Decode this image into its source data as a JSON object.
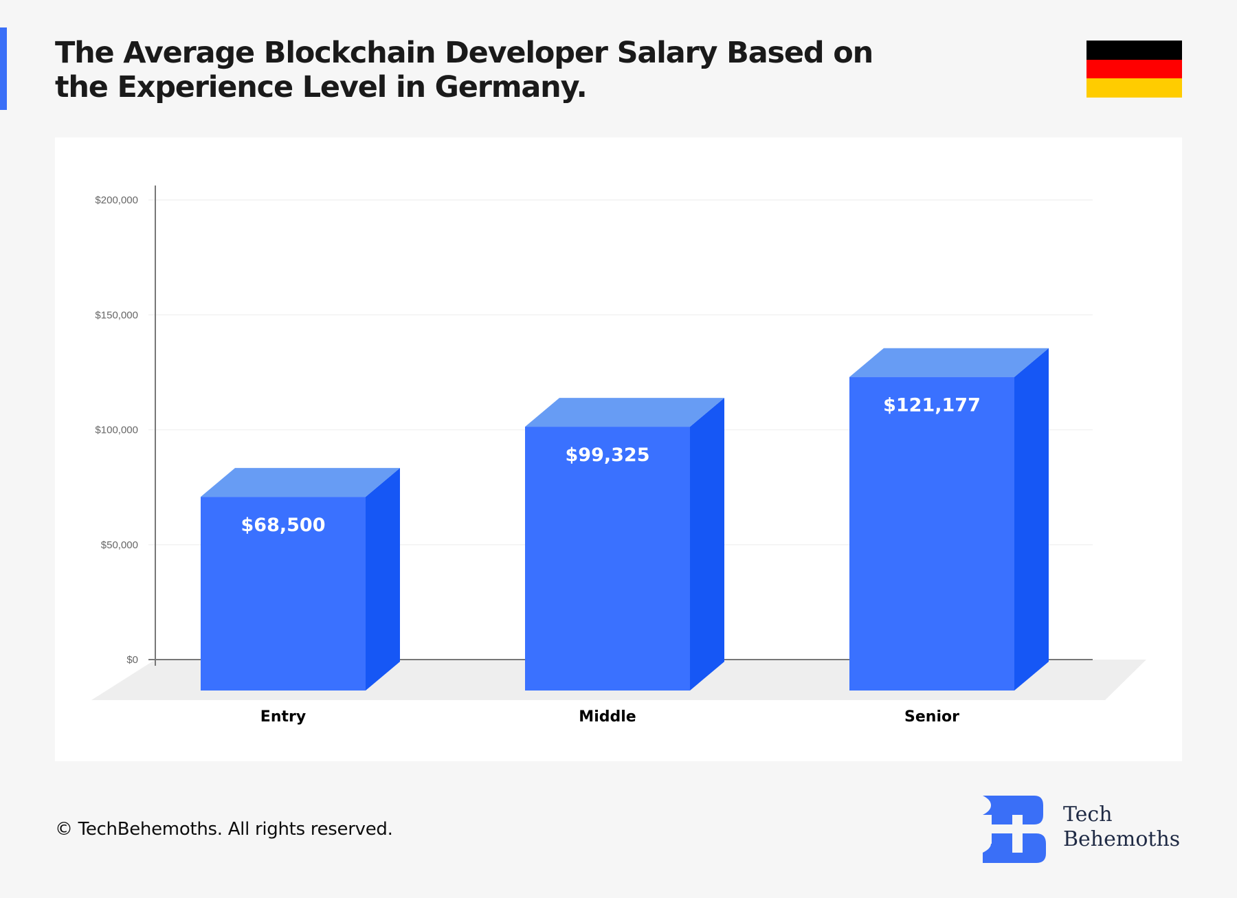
{
  "header": {
    "title_line1": "The Average Blockchain Developer Salary Based on",
    "title_line2": "the Experience Level in Germany.",
    "accent_color": "#3a6ff7",
    "flag": {
      "country": "Germany",
      "icon": "germany-flag-icon",
      "colors": [
        "#000000",
        "#ff0000",
        "#ffcc00"
      ]
    }
  },
  "chart_data": {
    "type": "bar",
    "style": "3d",
    "title": "The Average Blockchain Developer Salary Based on the Experience Level in Germany.",
    "xlabel": "",
    "ylabel": "",
    "categories": [
      "Entry",
      "Middle",
      "Senior"
    ],
    "values": [
      68500,
      99325,
      121177
    ],
    "value_labels": [
      "$68,500",
      "$99,325",
      "$121,177"
    ],
    "ylim": [
      0,
      200000
    ],
    "yticks": [
      0,
      50000,
      100000,
      150000,
      200000
    ],
    "ytick_labels": [
      "$0",
      "$50,000",
      "$100,000",
      "$150,000",
      "$200,000"
    ],
    "grid": true,
    "legend": "none",
    "colors": {
      "front": "#3a71ff",
      "top": "#679cf4",
      "side": "#1657f5",
      "floor": "#eeeeee"
    }
  },
  "footer": {
    "copyright": "© TechBehemoths. All rights reserved.",
    "brand_line1": "Tech",
    "brand_line2": "Behemoths",
    "brand_color": "#3a6ff7"
  }
}
